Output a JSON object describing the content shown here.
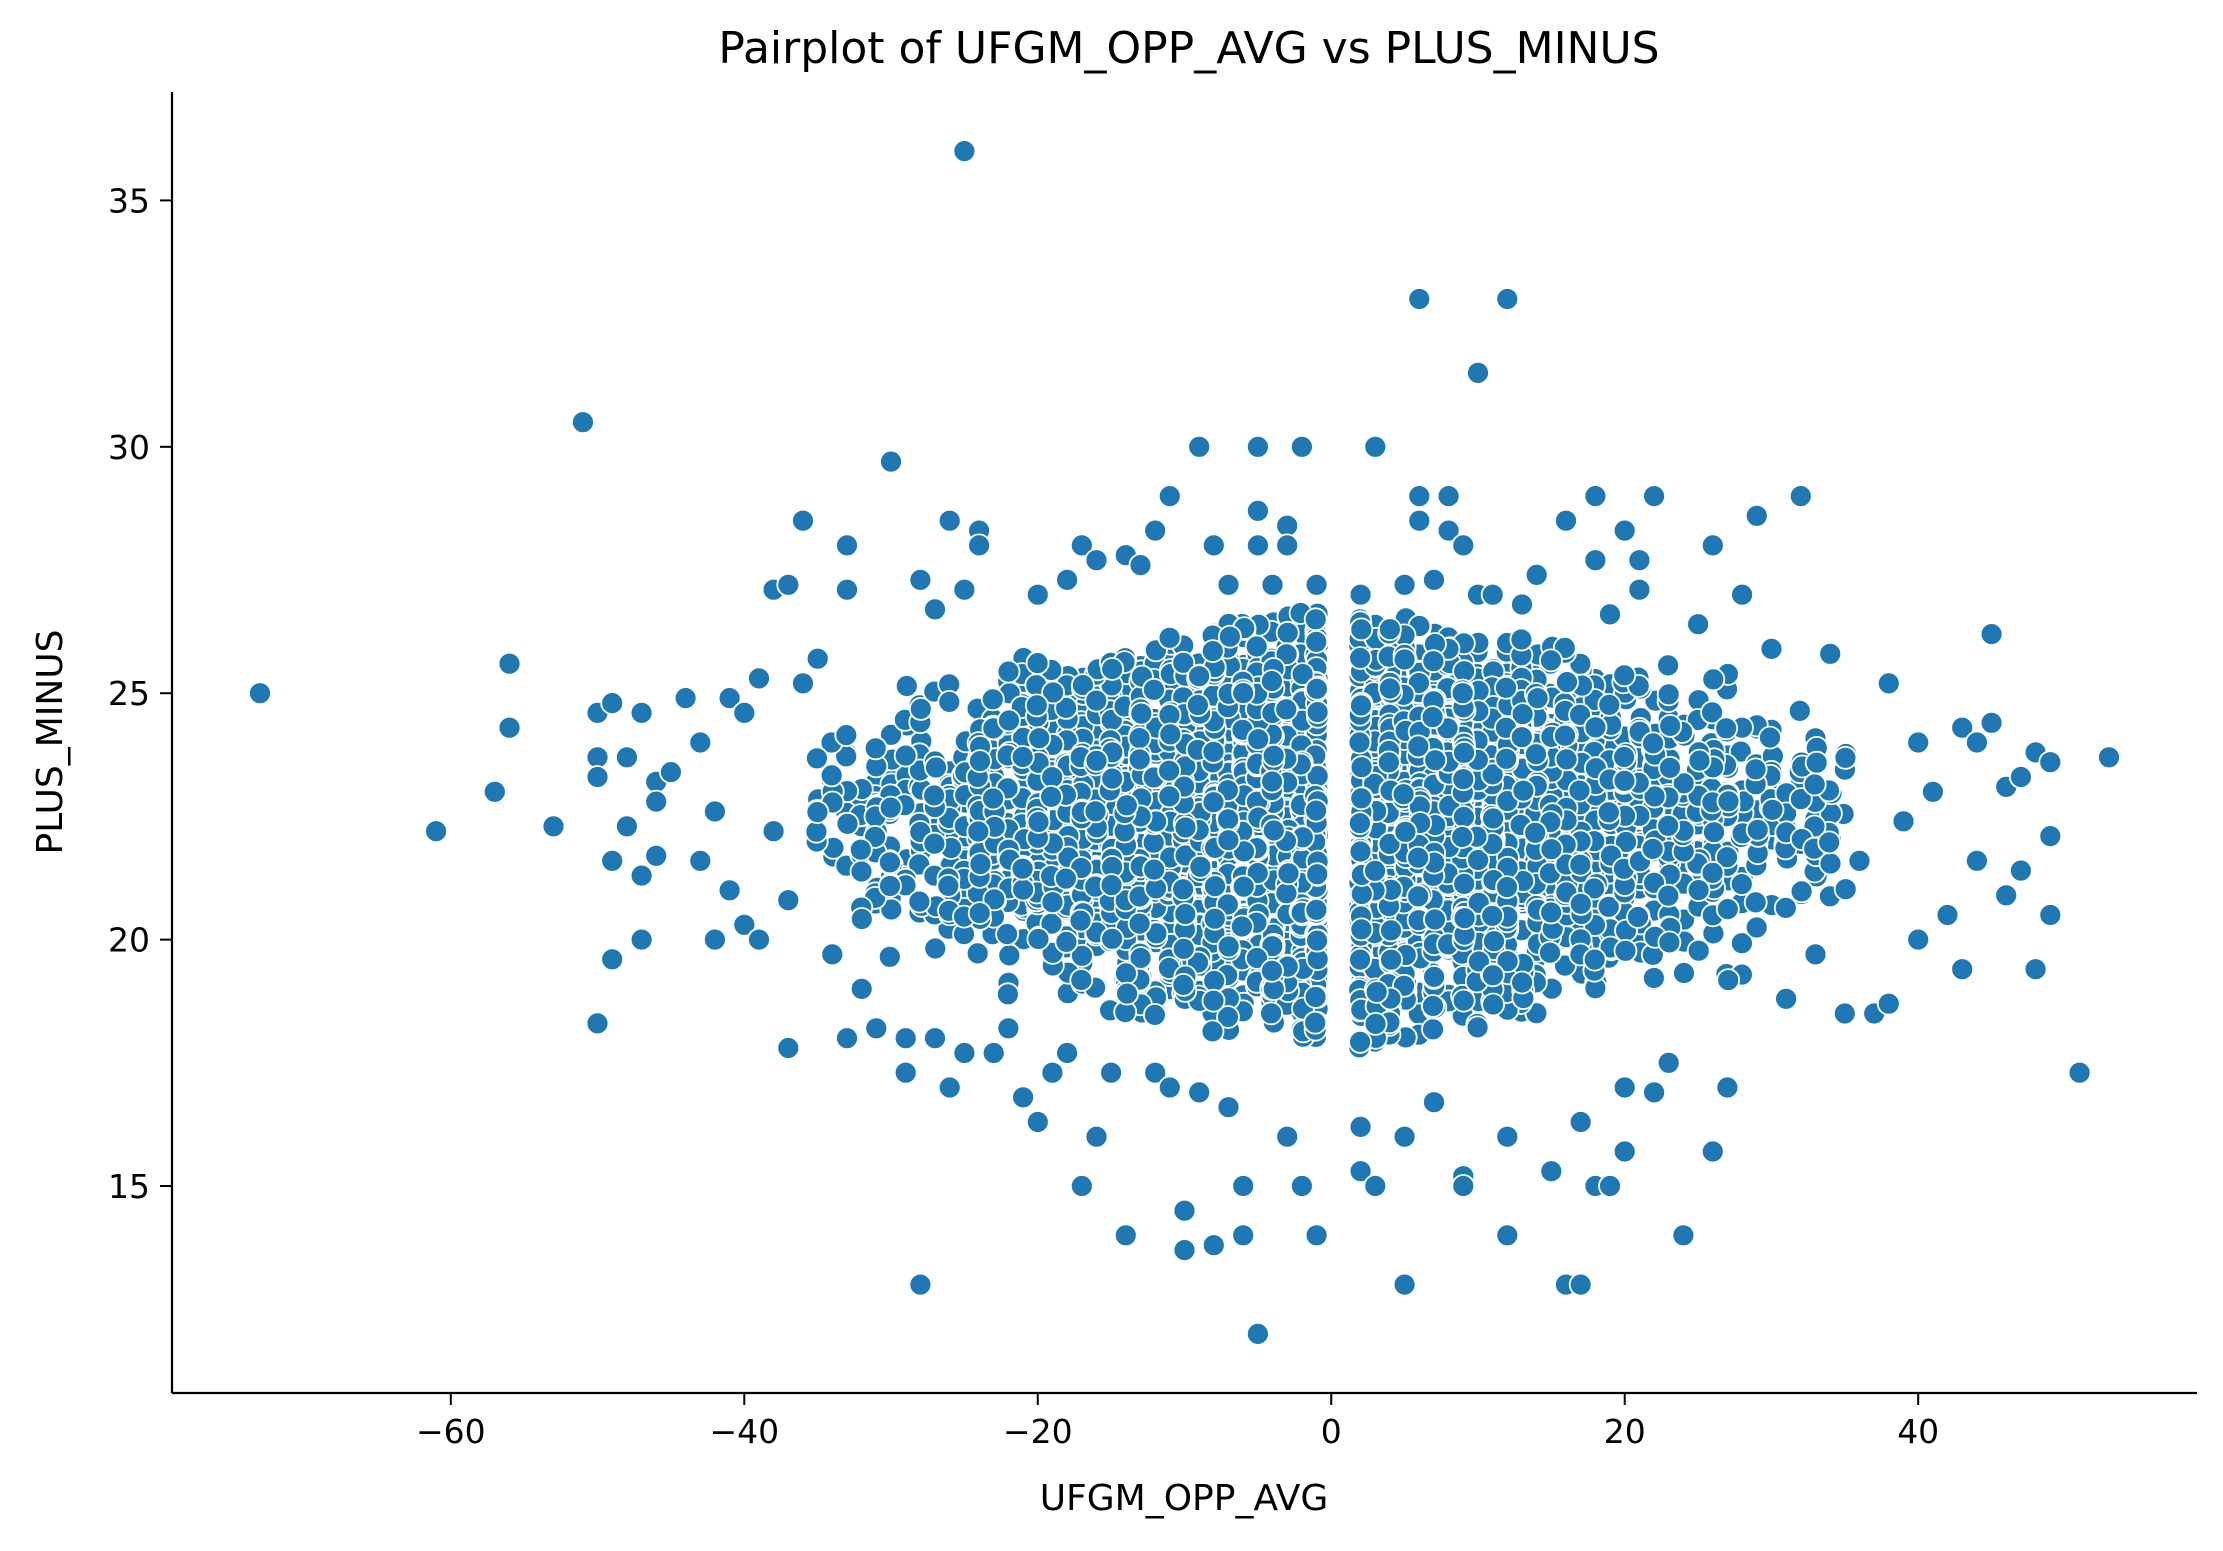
{
  "chart_data": {
    "type": "scatter",
    "title": "Pairplot of UFGM_OPP_AVG vs PLUS_MINUS",
    "xlabel": "UFGM_OPP_AVG",
    "ylabel": "PLUS_MINUS",
    "xlim": [
      -79,
      59
    ],
    "ylim": [
      10.8,
      37.2
    ],
    "xticks": [
      -60,
      -40,
      -20,
      0,
      20,
      40
    ],
    "xtick_labels": [
      "−60",
      "−40",
      "−20",
      "0",
      "20",
      "40"
    ],
    "yticks": [
      15,
      20,
      25,
      30,
      35
    ],
    "ytick_labels": [
      "15",
      "20",
      "25",
      "30",
      "35"
    ],
    "grid": false,
    "color": "#1f77b4",
    "bulk_cloud": {
      "description_points": "dense cluster",
      "center": [
        0,
        22.5
      ],
      "x_range": [
        -35,
        35
      ],
      "y_range": [
        17,
        26
      ]
    },
    "points": [
      [
        -73,
        25.0
      ],
      [
        -61,
        22.2
      ],
      [
        -57,
        23.0
      ],
      [
        -56,
        25.6
      ],
      [
        -56,
        24.3
      ],
      [
        -53,
        22.3
      ],
      [
        -51,
        30.5
      ],
      [
        -50,
        24.6
      ],
      [
        -50,
        23.7
      ],
      [
        -50,
        23.3
      ],
      [
        -50,
        18.3
      ],
      [
        -49,
        24.8
      ],
      [
        -49,
        21.6
      ],
      [
        -49,
        19.6
      ],
      [
        -48,
        23.7
      ],
      [
        -48,
        22.3
      ],
      [
        -47,
        24.6
      ],
      [
        -47,
        21.3
      ],
      [
        -47,
        20.0
      ],
      [
        -46,
        23.2
      ],
      [
        -46,
        22.8
      ],
      [
        -46,
        21.7
      ],
      [
        -45,
        23.4
      ],
      [
        -44,
        24.9
      ],
      [
        -43,
        24.0
      ],
      [
        -43,
        21.6
      ],
      [
        -42,
        22.6
      ],
      [
        -42,
        20.0
      ],
      [
        -41,
        24.9
      ],
      [
        -41,
        21.0
      ],
      [
        -40,
        24.6
      ],
      [
        -40,
        20.3
      ],
      [
        -39,
        25.3
      ],
      [
        -39,
        20.0
      ],
      [
        -38,
        27.1
      ],
      [
        -38,
        22.2
      ],
      [
        -37,
        27.2
      ],
      [
        -37,
        20.8
      ],
      [
        -37,
        17.8
      ],
      [
        -36,
        28.5
      ],
      [
        -36,
        25.2
      ],
      [
        -35,
        25.7
      ],
      [
        -34,
        19.7
      ],
      [
        -33,
        28.0
      ],
      [
        -33,
        27.1
      ],
      [
        -33,
        18.0
      ],
      [
        -32,
        19.0
      ],
      [
        -31,
        18.2
      ],
      [
        -30,
        29.7
      ],
      [
        -29,
        18.0
      ],
      [
        -29,
        17.3
      ],
      [
        -28,
        27.3
      ],
      [
        -28,
        13.0
      ],
      [
        -27,
        26.7
      ],
      [
        -27,
        18.0
      ],
      [
        -26,
        28.5
      ],
      [
        -26,
        17.0
      ],
      [
        -25,
        36.0
      ],
      [
        -25,
        27.1
      ],
      [
        -25,
        17.7
      ],
      [
        -24,
        28.3
      ],
      [
        -24,
        28.0
      ],
      [
        -23,
        17.7
      ],
      [
        -22,
        18.2
      ],
      [
        -21,
        16.8
      ],
      [
        -20,
        27.0
      ],
      [
        -20,
        16.3
      ],
      [
        -19,
        17.3
      ],
      [
        -18,
        27.3
      ],
      [
        -18,
        17.7
      ],
      [
        -17,
        28.0
      ],
      [
        -17,
        15.0
      ],
      [
        -16,
        27.7
      ],
      [
        -16,
        16.0
      ],
      [
        -15,
        17.3
      ],
      [
        -14,
        27.8
      ],
      [
        -14,
        14.0
      ],
      [
        -13,
        27.6
      ],
      [
        -12,
        28.3
      ],
      [
        -12,
        17.3
      ],
      [
        -11,
        29.0
      ],
      [
        -11,
        17.0
      ],
      [
        -10,
        14.5
      ],
      [
        -10,
        13.7
      ],
      [
        -9,
        30.0
      ],
      [
        -9,
        16.9
      ],
      [
        -8,
        28.0
      ],
      [
        -8,
        13.8
      ],
      [
        -7,
        27.2
      ],
      [
        -7,
        16.6
      ],
      [
        -6,
        15.0
      ],
      [
        -6,
        14.0
      ],
      [
        -5,
        30.0
      ],
      [
        -5,
        28.7
      ],
      [
        -5,
        28.0
      ],
      [
        -5,
        12.0
      ],
      [
        -4,
        27.2
      ],
      [
        -3,
        28.4
      ],
      [
        -3,
        28.0
      ],
      [
        -3,
        16.0
      ],
      [
        -2,
        30.0
      ],
      [
        -2,
        15.0
      ],
      [
        -1,
        27.2
      ],
      [
        -1,
        14.0
      ],
      [
        2,
        27.0
      ],
      [
        2,
        16.2
      ],
      [
        2,
        15.3
      ],
      [
        3,
        30.0
      ],
      [
        3,
        15.0
      ],
      [
        4,
        26.3
      ],
      [
        5,
        27.2
      ],
      [
        5,
        16.0
      ],
      [
        5,
        13.0
      ],
      [
        6,
        33.0
      ],
      [
        6,
        29.0
      ],
      [
        6,
        28.5
      ],
      [
        7,
        27.3
      ],
      [
        7,
        16.7
      ],
      [
        8,
        29.0
      ],
      [
        8,
        28.3
      ],
      [
        9,
        28.0
      ],
      [
        9,
        15.2
      ],
      [
        9,
        15.0
      ],
      [
        10,
        31.5
      ],
      [
        10,
        27.0
      ],
      [
        11,
        27.0
      ],
      [
        12,
        33.0
      ],
      [
        12,
        16.0
      ],
      [
        12,
        14.0
      ],
      [
        13,
        26.8
      ],
      [
        14,
        27.4
      ],
      [
        15,
        15.3
      ],
      [
        16,
        28.5
      ],
      [
        16,
        13.0
      ],
      [
        17,
        16.3
      ],
      [
        17,
        13.0
      ],
      [
        18,
        29.0
      ],
      [
        18,
        27.7
      ],
      [
        18,
        15.0
      ],
      [
        19,
        26.6
      ],
      [
        19,
        15.0
      ],
      [
        20,
        28.3
      ],
      [
        20,
        17.0
      ],
      [
        20,
        15.7
      ],
      [
        21,
        27.7
      ],
      [
        21,
        27.1
      ],
      [
        22,
        29.0
      ],
      [
        22,
        16.9
      ],
      [
        23,
        17.5
      ],
      [
        24,
        14.0
      ],
      [
        25,
        26.4
      ],
      [
        26,
        28.0
      ],
      [
        26,
        15.7
      ],
      [
        27,
        17.0
      ],
      [
        28,
        27.0
      ],
      [
        29,
        28.6
      ],
      [
        30,
        25.9
      ],
      [
        31,
        18.8
      ],
      [
        32,
        29.0
      ],
      [
        33,
        19.7
      ],
      [
        34,
        25.8
      ],
      [
        35,
        18.5
      ],
      [
        36,
        21.6
      ],
      [
        37,
        18.5
      ],
      [
        38,
        25.2
      ],
      [
        38,
        18.7
      ],
      [
        39,
        22.4
      ],
      [
        40,
        24.0
      ],
      [
        40,
        20.0
      ],
      [
        41,
        23.0
      ],
      [
        42,
        20.5
      ],
      [
        43,
        24.3
      ],
      [
        43,
        19.4
      ],
      [
        44,
        24.0
      ],
      [
        44,
        21.6
      ],
      [
        45,
        26.2
      ],
      [
        45,
        24.4
      ],
      [
        46,
        23.1
      ],
      [
        46,
        20.9
      ],
      [
        47,
        23.3
      ],
      [
        47,
        21.4
      ],
      [
        48,
        23.8
      ],
      [
        48,
        19.4
      ],
      [
        49,
        23.6
      ],
      [
        49,
        22.1
      ],
      [
        49,
        20.5
      ],
      [
        51,
        17.3
      ],
      [
        53,
        23.7
      ]
    ]
  }
}
